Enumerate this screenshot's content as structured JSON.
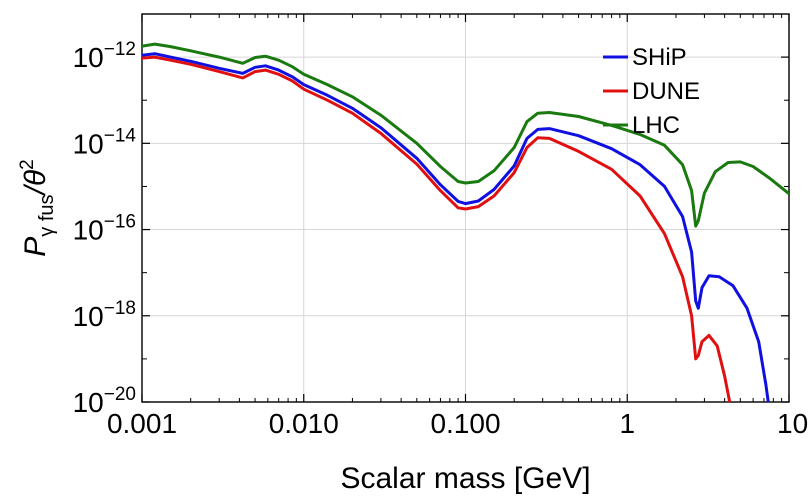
{
  "chart_data": {
    "type": "line",
    "title": "",
    "xlabel": "Scalar mass [GeV]",
    "ylabel": {
      "main": "P",
      "sub": "γ fus",
      "over": "/θ",
      "sup": "2"
    },
    "x_scale": "log",
    "y_scale": "log",
    "xlim": [
      0.001,
      10
    ],
    "ylim": [
      1e-20,
      1e-11
    ],
    "x_ticks": [
      {
        "value": 0.001,
        "label": "0.001"
      },
      {
        "value": 0.01,
        "label": "0.010"
      },
      {
        "value": 0.1,
        "label": "0.100"
      },
      {
        "value": 1,
        "label": "1"
      },
      {
        "value": 10,
        "label": "10"
      }
    ],
    "y_ticks": [
      {
        "value": 1e-12,
        "base": "10",
        "exp": "−12"
      },
      {
        "value": 1e-14,
        "base": "10",
        "exp": "−14"
      },
      {
        "value": 1e-16,
        "base": "10",
        "exp": "−16"
      },
      {
        "value": 1e-18,
        "base": "10",
        "exp": "−18"
      },
      {
        "value": 1e-20,
        "base": "10",
        "exp": "−20"
      }
    ],
    "grid": true,
    "legend_position": "top-right",
    "series": [
      {
        "name": "SHiP",
        "color": "#1010e0",
        "points": [
          [
            0.001,
            1.1e-12
          ],
          [
            0.0012,
            1.2e-12
          ],
          [
            0.0015,
            1e-12
          ],
          [
            0.002,
            8e-13
          ],
          [
            0.003,
            5.5e-13
          ],
          [
            0.0042,
            4.2e-13
          ],
          [
            0.005,
            5.8e-13
          ],
          [
            0.0058,
            6.3e-13
          ],
          [
            0.007,
            5e-13
          ],
          [
            0.0085,
            3.5e-13
          ],
          [
            0.01,
            2.3e-13
          ],
          [
            0.014,
            1.3e-13
          ],
          [
            0.02,
            6.5e-14
          ],
          [
            0.03,
            2.3e-14
          ],
          [
            0.05,
            4.5e-15
          ],
          [
            0.07,
            1.1e-15
          ],
          [
            0.09,
            4.5e-16
          ],
          [
            0.1,
            4e-16
          ],
          [
            0.12,
            4.6e-16
          ],
          [
            0.15,
            8.5e-16
          ],
          [
            0.2,
            3e-15
          ],
          [
            0.24,
            1.3e-14
          ],
          [
            0.28,
            2.1e-14
          ],
          [
            0.33,
            2.2e-14
          ],
          [
            0.5,
            1.5e-14
          ],
          [
            0.8,
            7.5e-15
          ],
          [
            1.2,
            3.2e-15
          ],
          [
            1.7,
            1e-15
          ],
          [
            2.2,
            2e-16
          ],
          [
            2.5,
            3e-17
          ],
          [
            2.65,
            2.2e-18
          ],
          [
            2.75,
            1.5e-18
          ],
          [
            2.9,
            4.5e-18
          ],
          [
            3.2,
            8.5e-18
          ],
          [
            3.7,
            8e-18
          ],
          [
            4.5,
            5e-18
          ],
          [
            5.5,
            1.5e-18
          ],
          [
            6.5,
            2.5e-19
          ],
          [
            7.2,
            2.5e-20
          ],
          [
            7.5,
            8e-21
          ]
        ]
      },
      {
        "name": "DUNE",
        "color": "#e01010",
        "points": [
          [
            0.001,
            9.5e-13
          ],
          [
            0.0012,
            1e-12
          ],
          [
            0.0015,
            8.5e-13
          ],
          [
            0.002,
            6.8e-13
          ],
          [
            0.003,
            4.6e-13
          ],
          [
            0.0042,
            3.3e-13
          ],
          [
            0.005,
            4.6e-13
          ],
          [
            0.0058,
            5e-13
          ],
          [
            0.007,
            4e-13
          ],
          [
            0.0085,
            2.8e-13
          ],
          [
            0.01,
            1.8e-13
          ],
          [
            0.014,
            1e-13
          ],
          [
            0.02,
            5e-14
          ],
          [
            0.03,
            1.7e-14
          ],
          [
            0.05,
            3.3e-15
          ],
          [
            0.07,
            8e-16
          ],
          [
            0.09,
            3.2e-16
          ],
          [
            0.1,
            3e-16
          ],
          [
            0.12,
            3.4e-16
          ],
          [
            0.15,
            6e-16
          ],
          [
            0.2,
            2.1e-15
          ],
          [
            0.24,
            8e-15
          ],
          [
            0.28,
            1.35e-14
          ],
          [
            0.33,
            1.3e-14
          ],
          [
            0.5,
            6.5e-15
          ],
          [
            0.8,
            2.5e-15
          ],
          [
            1.2,
            6e-16
          ],
          [
            1.7,
            8e-17
          ],
          [
            2.2,
            8e-18
          ],
          [
            2.5,
            1e-18
          ],
          [
            2.65,
            1e-19
          ],
          [
            2.75,
            1.2e-19
          ],
          [
            2.9,
            2.5e-19
          ],
          [
            3.2,
            3.5e-19
          ],
          [
            3.6,
            2e-19
          ],
          [
            4.0,
            4e-20
          ],
          [
            4.3,
            1e-20
          ]
        ]
      },
      {
        "name": "LHC",
        "color": "#1a7a10",
        "points": [
          [
            0.001,
            1.8e-12
          ],
          [
            0.0012,
            2e-12
          ],
          [
            0.0015,
            1.75e-12
          ],
          [
            0.002,
            1.4e-12
          ],
          [
            0.003,
            1e-12
          ],
          [
            0.0042,
            7.2e-13
          ],
          [
            0.005,
            9.8e-13
          ],
          [
            0.0058,
            1.05e-12
          ],
          [
            0.007,
            8.5e-13
          ],
          [
            0.0085,
            6e-13
          ],
          [
            0.01,
            4e-13
          ],
          [
            0.014,
            2.3e-13
          ],
          [
            0.02,
            1.2e-13
          ],
          [
            0.03,
            4.5e-14
          ],
          [
            0.05,
            1e-14
          ],
          [
            0.07,
            2.9e-15
          ],
          [
            0.09,
            1.3e-15
          ],
          [
            0.1,
            1.2e-15
          ],
          [
            0.12,
            1.3e-15
          ],
          [
            0.15,
            2.3e-15
          ],
          [
            0.2,
            8e-15
          ],
          [
            0.24,
            3.2e-14
          ],
          [
            0.28,
            5e-14
          ],
          [
            0.33,
            5.2e-14
          ],
          [
            0.5,
            4.2e-14
          ],
          [
            0.8,
            2.6e-14
          ],
          [
            1.2,
            1.6e-14
          ],
          [
            1.7,
            9e-15
          ],
          [
            2.2,
            3.2e-15
          ],
          [
            2.5,
            8e-16
          ],
          [
            2.65,
            1.2e-16
          ],
          [
            2.75,
            1.6e-16
          ],
          [
            3.0,
            7e-16
          ],
          [
            3.5,
            2.2e-15
          ],
          [
            4.2,
            3.6e-15
          ],
          [
            5.0,
            3.7e-15
          ],
          [
            6.0,
            2.9e-15
          ],
          [
            7.5,
            1.6e-15
          ],
          [
            10,
            6.8e-16
          ]
        ]
      }
    ]
  }
}
